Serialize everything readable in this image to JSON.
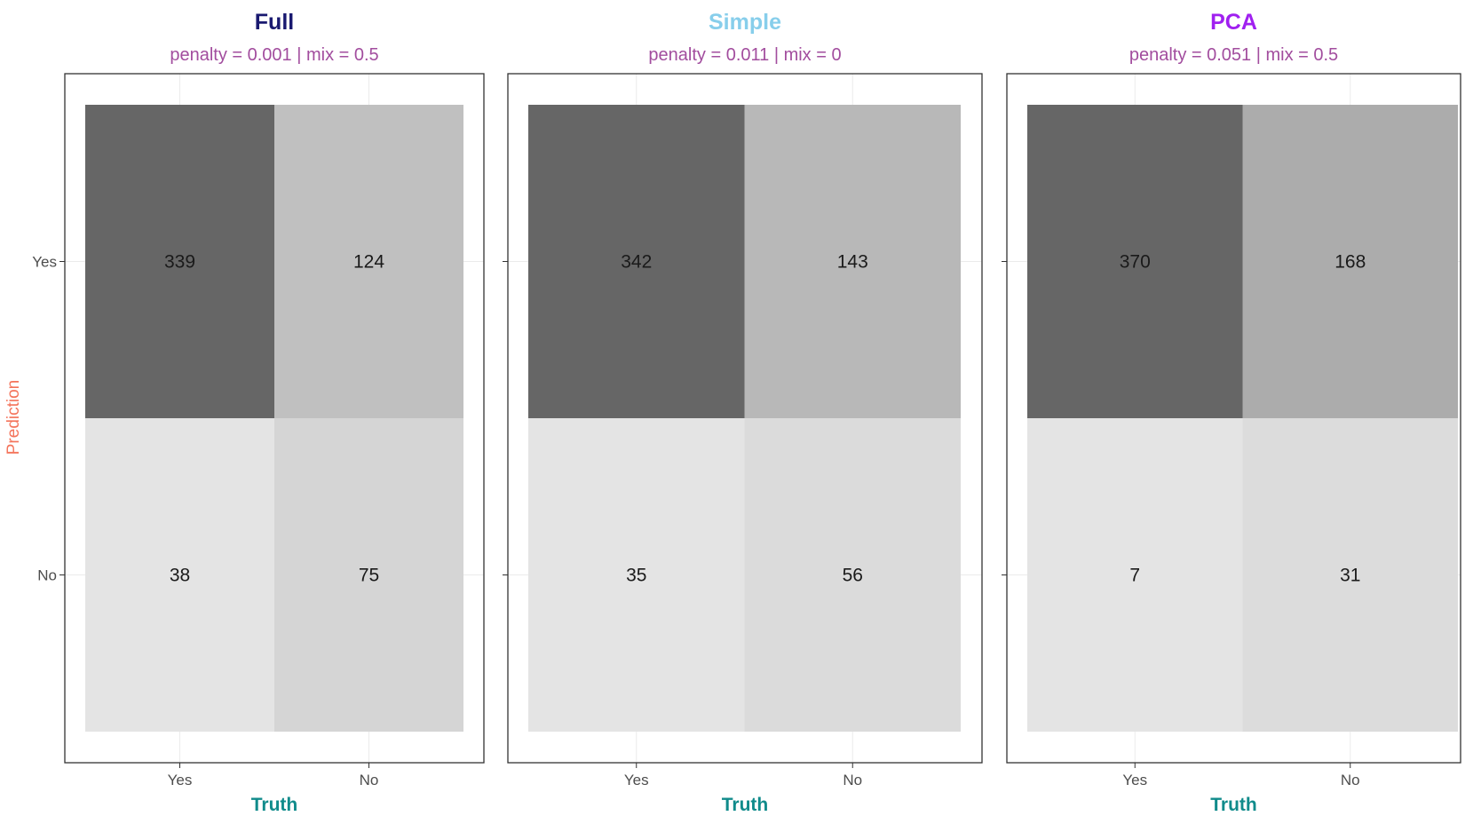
{
  "y_axis_label": "Prediction",
  "y_axis_label_color": "#F4735A",
  "chart_data": [
    {
      "type": "heatmap",
      "title": "Full",
      "title_color": "#191970",
      "subtitle": "penalty = 0.001 | mix = 0.5",
      "subtitle_color": "#A24D9E",
      "xlabel": "Truth",
      "xlabel_color": "#108B8B",
      "ylabel": "Prediction",
      "x_categories": [
        "Yes",
        "No"
      ],
      "y_categories": [
        "Yes",
        "No"
      ],
      "cells": [
        {
          "truth": "Yes",
          "prediction": "Yes",
          "count": 339
        },
        {
          "truth": "No",
          "prediction": "Yes",
          "count": 124
        },
        {
          "truth": "Yes",
          "prediction": "No",
          "count": 38
        },
        {
          "truth": "No",
          "prediction": "No",
          "count": 75
        }
      ]
    },
    {
      "type": "heatmap",
      "title": "Simple",
      "title_color": "#87CEEB",
      "subtitle": "penalty = 0.011 | mix = 0",
      "subtitle_color": "#A24D9E",
      "xlabel": "Truth",
      "xlabel_color": "#108B8B",
      "ylabel": "Prediction",
      "x_categories": [
        "Yes",
        "No"
      ],
      "y_categories": [
        "Yes",
        "No"
      ],
      "cells": [
        {
          "truth": "Yes",
          "prediction": "Yes",
          "count": 342
        },
        {
          "truth": "No",
          "prediction": "Yes",
          "count": 143
        },
        {
          "truth": "Yes",
          "prediction": "No",
          "count": 35
        },
        {
          "truth": "No",
          "prediction": "No",
          "count": 56
        }
      ]
    },
    {
      "type": "heatmap",
      "title": "PCA",
      "title_color": "#A020F0",
      "subtitle": "penalty = 0.051 | mix = 0.5",
      "subtitle_color": "#A24D9E",
      "xlabel": "Truth",
      "xlabel_color": "#108B8B",
      "ylabel": "Prediction",
      "x_categories": [
        "Yes",
        "No"
      ],
      "y_categories": [
        "Yes",
        "No"
      ],
      "cells": [
        {
          "truth": "Yes",
          "prediction": "Yes",
          "count": 370
        },
        {
          "truth": "No",
          "prediction": "Yes",
          "count": 168
        },
        {
          "truth": "Yes",
          "prediction": "No",
          "count": 7
        },
        {
          "truth": "No",
          "prediction": "No",
          "count": 31
        }
      ]
    }
  ]
}
